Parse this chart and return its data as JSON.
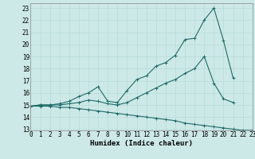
{
  "xlabel": "Humidex (Indice chaleur)",
  "ylabel": "",
  "bg_color": "#cce9e7",
  "line_color": "#1e6b68",
  "grid_color": "#b0d8d6",
  "x_values": [
    0,
    1,
    2,
    3,
    4,
    5,
    6,
    7,
    8,
    9,
    10,
    11,
    12,
    13,
    14,
    15,
    16,
    17,
    18,
    19,
    20,
    21,
    22,
    23
  ],
  "series": {
    "max": [
      14.9,
      15.0,
      15.0,
      15.1,
      15.3,
      15.7,
      16.0,
      16.5,
      15.3,
      15.2,
      16.2,
      17.1,
      17.4,
      18.2,
      18.5,
      19.1,
      20.4,
      20.5,
      22.0,
      23.0,
      20.3,
      17.2,
      null,
      null
    ],
    "mean": [
      14.9,
      15.0,
      15.0,
      15.0,
      15.1,
      15.2,
      15.4,
      15.3,
      15.1,
      15.0,
      15.2,
      15.6,
      16.0,
      16.4,
      16.8,
      17.1,
      17.6,
      18.0,
      19.0,
      16.8,
      15.5,
      15.2,
      null,
      null
    ],
    "min": [
      14.9,
      14.9,
      14.9,
      14.8,
      14.8,
      14.7,
      14.6,
      14.5,
      14.4,
      14.3,
      14.2,
      14.1,
      14.0,
      13.9,
      13.8,
      13.7,
      13.5,
      13.4,
      13.3,
      13.2,
      13.1,
      13.0,
      12.9,
      12.9
    ]
  },
  "xlim": [
    0,
    23
  ],
  "ylim": [
    12.9,
    23.4
  ],
  "yticks": [
    13,
    14,
    15,
    16,
    17,
    18,
    19,
    20,
    21,
    22,
    23
  ],
  "xticks": [
    0,
    1,
    2,
    3,
    4,
    5,
    6,
    7,
    8,
    9,
    10,
    11,
    12,
    13,
    14,
    15,
    16,
    17,
    18,
    19,
    20,
    21,
    22,
    23
  ],
  "marker": "+",
  "markersize": 3,
  "linewidth": 0.8,
  "label_fontsize": 6.5,
  "tick_fontsize": 5.5
}
